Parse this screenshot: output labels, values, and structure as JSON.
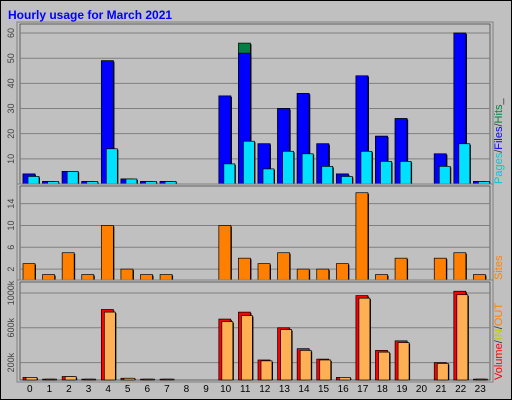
{
  "chart_data": {
    "type": "bar",
    "title": "Hourly usage for March 2021",
    "categories": [
      "0",
      "1",
      "2",
      "3",
      "4",
      "5",
      "6",
      "7",
      "8",
      "9",
      "10",
      "11",
      "12",
      "13",
      "14",
      "15",
      "16",
      "17",
      "18",
      "19",
      "20",
      "21",
      "22",
      "23"
    ],
    "panels": [
      {
        "id": "hits",
        "y_ticks": [
          10,
          20,
          30,
          40,
          50,
          60
        ],
        "ylim": [
          0,
          62
        ],
        "right_label": [
          "Pages",
          "/",
          "Files",
          "/",
          "Hits",
          "_"
        ],
        "series": [
          {
            "name": "Hits",
            "color": "#008040",
            "values": [
              4,
              1,
              5,
              1,
              49,
              2,
              1,
              1,
              0,
              0,
              35,
              56,
              16,
              30,
              36,
              16,
              4,
              43,
              19,
              26,
              0,
              12,
              60,
              1
            ]
          },
          {
            "name": "Files",
            "color": "#0000ff",
            "values": [
              4,
              1,
              5,
              1,
              49,
              2,
              1,
              1,
              0,
              0,
              35,
              52,
              16,
              30,
              36,
              16,
              4,
              43,
              19,
              26,
              0,
              12,
              60,
              1
            ]
          },
          {
            "name": "Pages",
            "color": "#00e0ff",
            "values": [
              3,
              1,
              5,
              1,
              14,
              2,
              1,
              1,
              0,
              0,
              8,
              17,
              6,
              13,
              12,
              7,
              3,
              13,
              9,
              9,
              0,
              7,
              16,
              1
            ]
          }
        ]
      },
      {
        "id": "sites",
        "y_ticks": [
          2,
          6,
          10,
          14
        ],
        "ylim": [
          0,
          16.5
        ],
        "right_label": [
          "Sites"
        ],
        "series": [
          {
            "name": "Sites",
            "color": "#ff8000",
            "values": [
              3,
              1,
              5,
              1,
              10,
              2,
              1,
              1,
              0,
              0,
              10,
              4,
              3,
              5,
              2,
              2,
              3,
              16,
              1,
              4,
              0,
              4,
              5,
              1
            ]
          }
        ]
      },
      {
        "id": "volume",
        "y_ticks": [
          200,
          600,
          1000
        ],
        "y_tick_labels": [
          "200k",
          "600k",
          "1000k"
        ],
        "ylim": [
          0,
          1080
        ],
        "right_label": [
          "Volume",
          "/",
          "IN",
          "/",
          "OUT"
        ],
        "series": [
          {
            "name": "Volume",
            "color": "#ff0000",
            "values": [
              30,
              10,
              40,
              10,
              810,
              20,
              10,
              10,
              0,
              0,
              700,
              780,
              230,
              600,
              360,
              240,
              30,
              970,
              340,
              450,
              0,
              200,
              1020,
              10
            ]
          },
          {
            "name": "OUT",
            "color": "#ffb055",
            "values": [
              30,
              10,
              40,
              10,
              780,
              20,
              10,
              10,
              0,
              0,
              670,
              740,
              220,
              580,
              340,
              230,
              30,
              940,
              320,
              430,
              0,
              190,
              980,
              10
            ]
          }
        ]
      }
    ]
  }
}
